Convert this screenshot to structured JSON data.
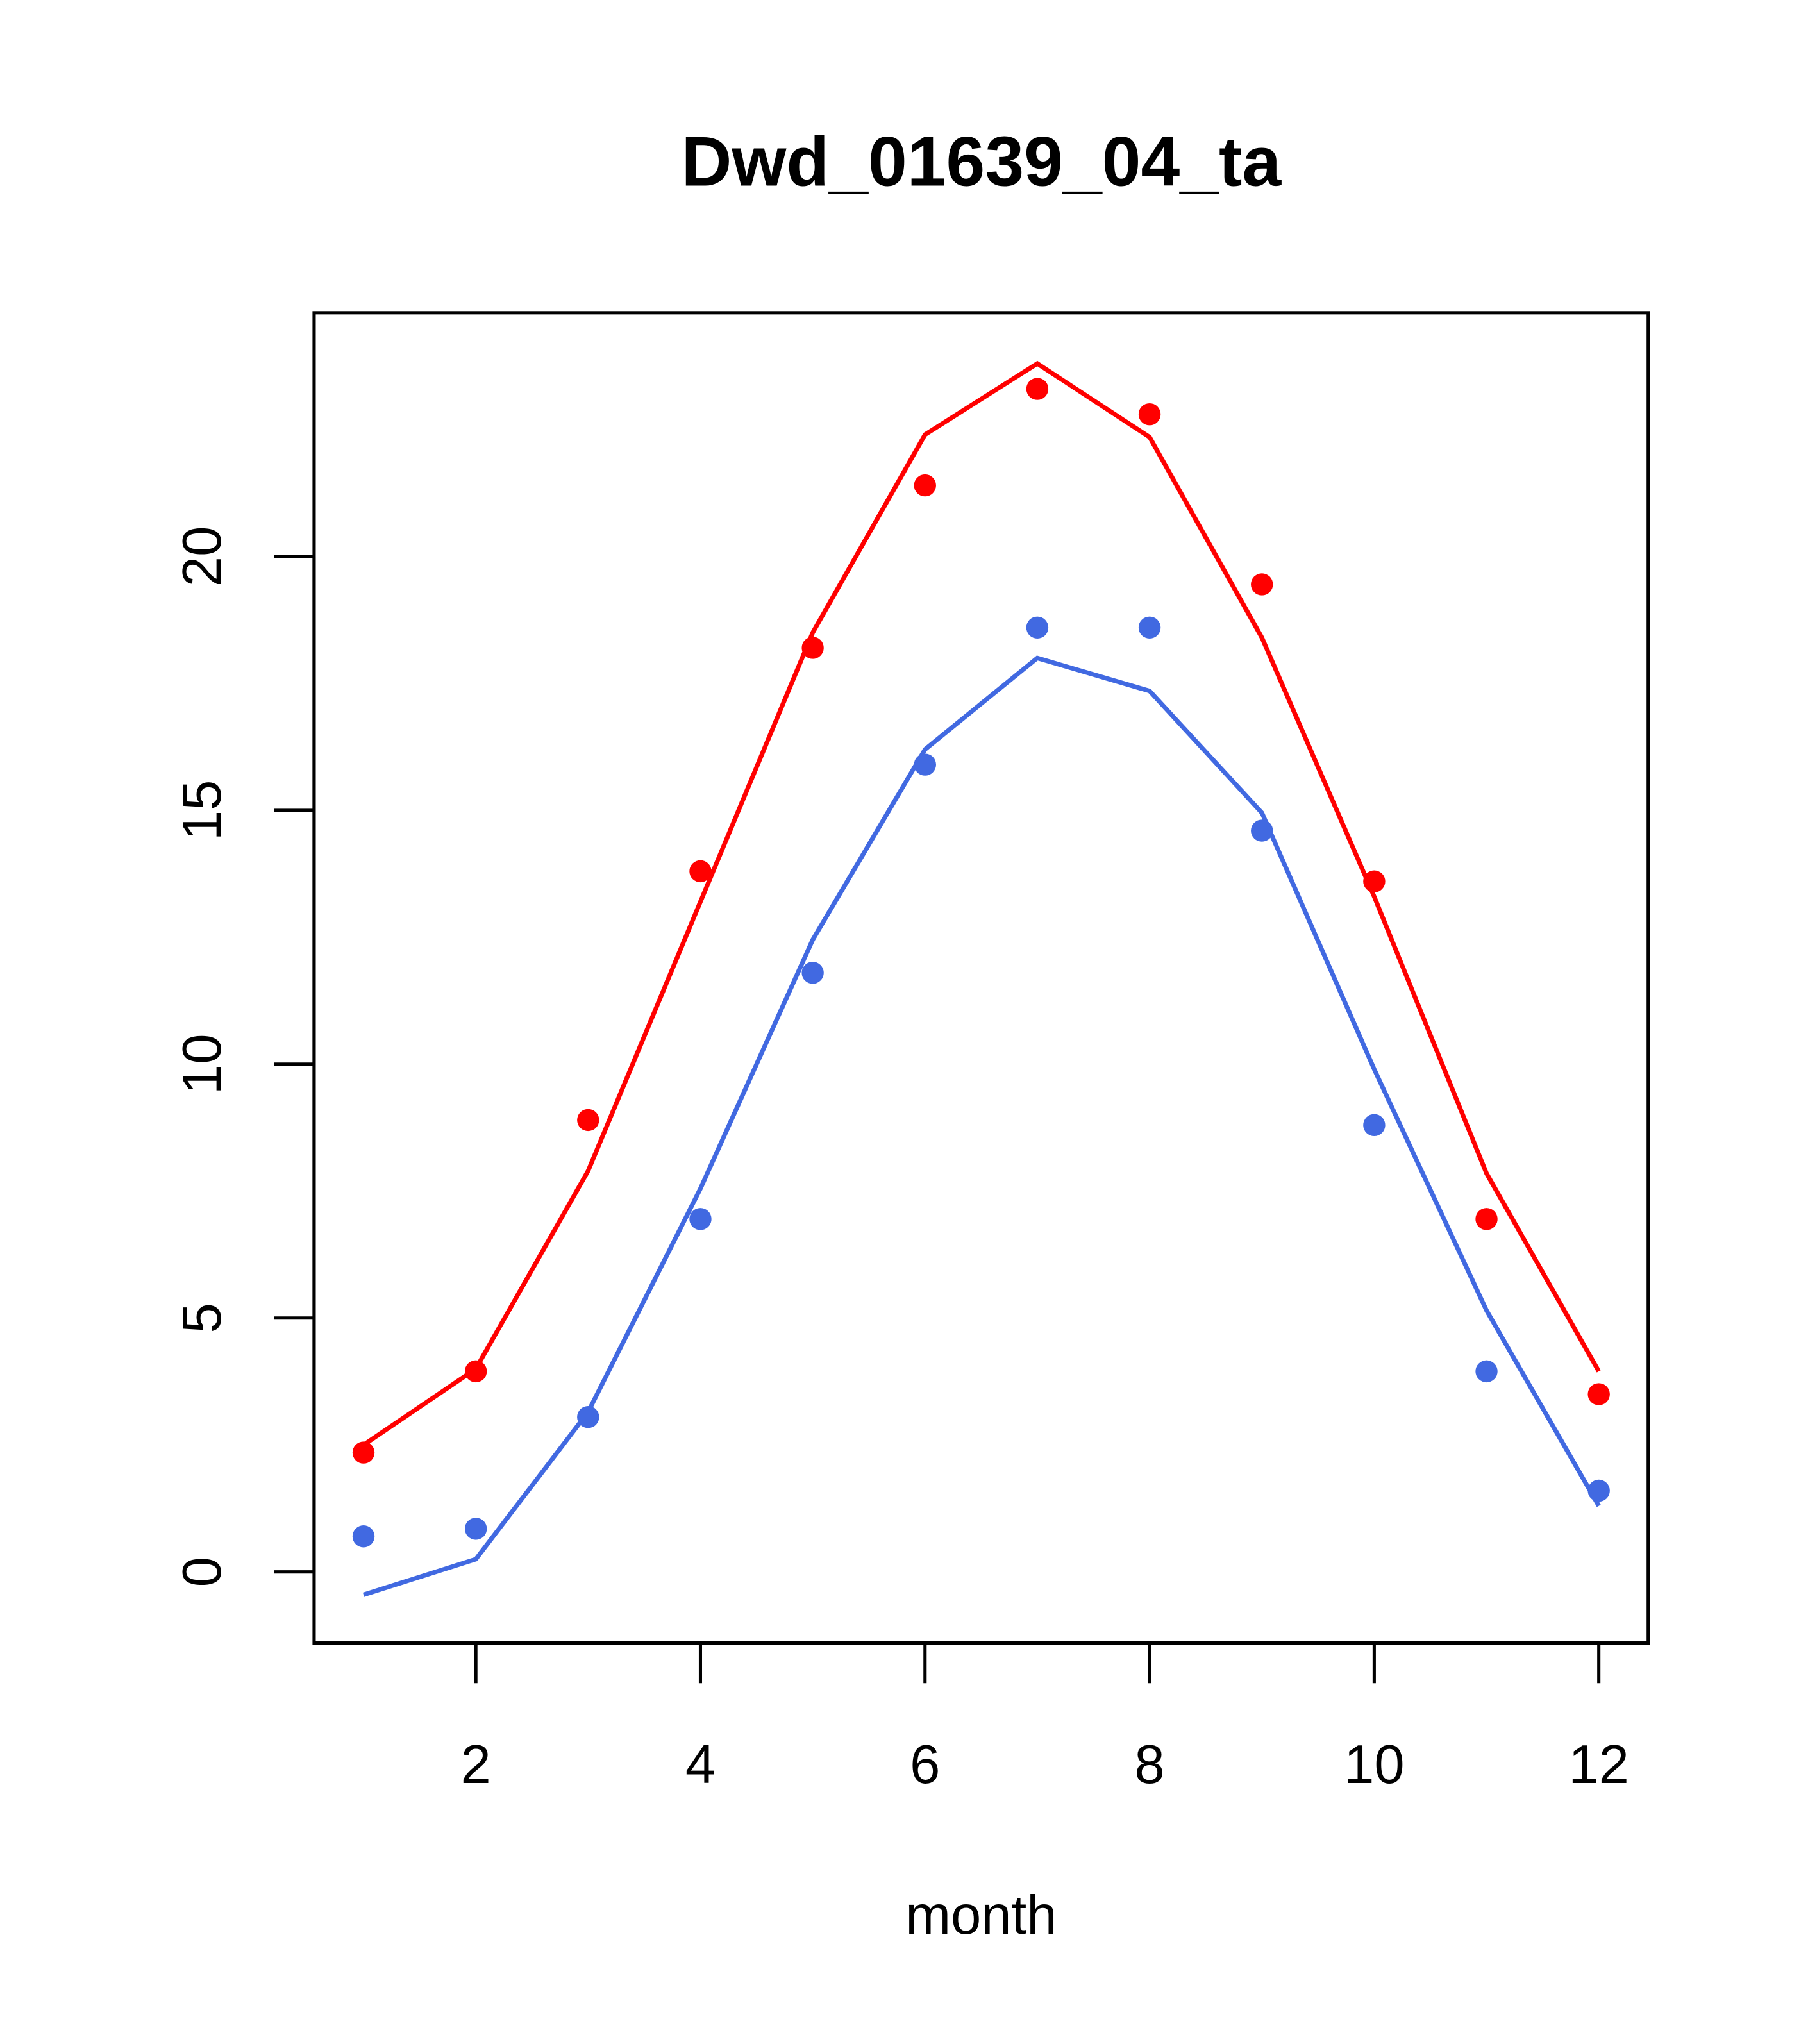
{
  "chart_data": {
    "type": "line",
    "title": "Dwd_01639_04_ta",
    "xlabel": "month",
    "ylabel": "",
    "xlim": [
      0.56,
      12.44
    ],
    "ylim": [
      -1.4,
      24.8
    ],
    "xticks": [
      2,
      4,
      6,
      8,
      10,
      12
    ],
    "yticks": [
      0,
      5,
      10,
      15,
      20
    ],
    "grid": false,
    "legend": "none",
    "x": [
      1,
      2,
      3,
      4,
      5,
      6,
      7,
      8,
      9,
      10,
      11,
      12
    ],
    "series": [
      {
        "name": "red-line",
        "kind": "line",
        "color": "#ff0000",
        "values": [
          2.5,
          4.0,
          7.9,
          13.2,
          18.5,
          22.4,
          23.8,
          22.35,
          18.4,
          13.3,
          7.85,
          3.95
        ]
      },
      {
        "name": "red-points",
        "kind": "points",
        "color": "#ff0000",
        "values": [
          2.35,
          3.95,
          8.9,
          13.8,
          18.2,
          21.4,
          23.3,
          22.8,
          19.45,
          13.6,
          6.95,
          3.5
        ]
      },
      {
        "name": "blue-line",
        "kind": "line",
        "color": "#4169e1",
        "values": [
          -0.45,
          0.25,
          3.15,
          7.55,
          12.45,
          16.2,
          18.0,
          17.35,
          14.95,
          9.9,
          5.15,
          1.3
        ]
      },
      {
        "name": "blue-points",
        "kind": "points",
        "color": "#4169e1",
        "values": [
          0.7,
          0.85,
          3.05,
          6.95,
          11.8,
          15.9,
          18.6,
          18.6,
          14.6,
          8.8,
          3.95,
          1.6
        ]
      }
    ]
  }
}
